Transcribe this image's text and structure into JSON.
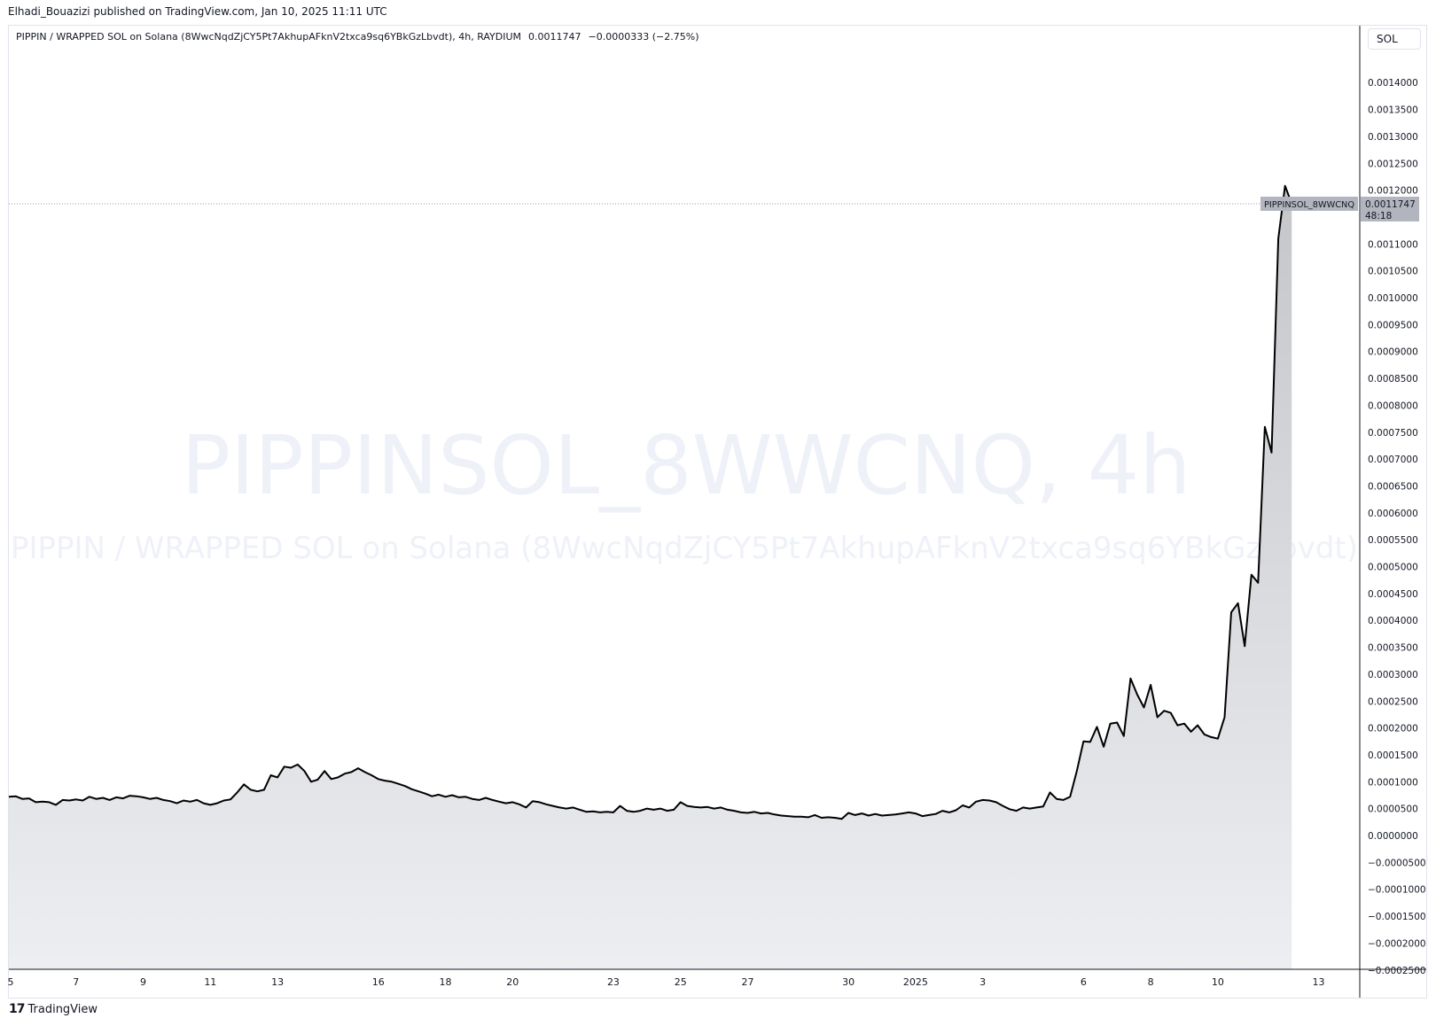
{
  "publish_info": "Elhadi_Bouazizi published on TradingView.com, Jan 10, 2025 11:11 UTC",
  "legend": {
    "symbol_desc": "PIPPIN / WRAPPED SOL on Solana (8WwcNqdZjCY5Pt7AkhupAFknV2txca9sq6YBkGzLbvdt), 4h, RAYDIUM",
    "last_price": "0.0011747",
    "change": "−0.0000333 (−2.75%)"
  },
  "currency_button": "SOL",
  "watermark": {
    "line1": "PIPPINSOL_8WWCNQ, 4h",
    "line2": "PIPPIN / WRAPPED SOL on Solana (8WwcNqdZjCY5Pt7AkhupAFknV2txca9sq6YBkGzLbvdt)"
  },
  "price_label": {
    "symbol": "PIPPINSOL_8WWCNQ",
    "price": "0.0011747",
    "countdown": "48:18"
  },
  "footer_brand": "TradingView",
  "colors": {
    "line": "#000000",
    "area_top": "#c4c6ca",
    "area_bottom": "#eceef1",
    "watermark": "#eef1f8",
    "price_tag": "#b2b5be",
    "grid_border": "#e0e3eb"
  },
  "chart_data": {
    "type": "area",
    "y_axis_position": "right",
    "ylim": [
      -0.00026,
      0.00145
    ],
    "y_ticks": [
      "0.0014000",
      "0.0013500",
      "0.0013000",
      "0.0012500",
      "0.0012000",
      "0.0011500",
      "0.0011000",
      "0.0010500",
      "0.0010000",
      "0.0009500",
      "0.0009000",
      "0.0008500",
      "0.0008000",
      "0.0007500",
      "0.0007000",
      "0.0006500",
      "0.0006000",
      "0.0005500",
      "0.0005000",
      "0.0004500",
      "0.0004000",
      "0.0003500",
      "0.0003000",
      "0.0002500",
      "0.0002000",
      "0.0001500",
      "0.0001000",
      "0.0000500",
      "0.0000000",
      "−0.0000500",
      "−0.0001000",
      "−0.0001500",
      "−0.0002000",
      "−0.0002500"
    ],
    "x_ticks": [
      {
        "label": "5",
        "day": 5
      },
      {
        "label": "7",
        "day": 7
      },
      {
        "label": "9",
        "day": 9
      },
      {
        "label": "11",
        "day": 11
      },
      {
        "label": "13",
        "day": 13
      },
      {
        "label": "16",
        "day": 16
      },
      {
        "label": "18",
        "day": 18
      },
      {
        "label": "20",
        "day": 20
      },
      {
        "label": "23",
        "day": 23
      },
      {
        "label": "25",
        "day": 25
      },
      {
        "label": "27",
        "day": 27
      },
      {
        "label": "30",
        "day": 30
      },
      {
        "label": "2025",
        "day": 32
      },
      {
        "label": "3",
        "day": 34
      },
      {
        "label": "6",
        "day": 37
      },
      {
        "label": "8",
        "day": 39
      },
      {
        "label": "10",
        "day": 41
      },
      {
        "label": "13",
        "day": 44
      }
    ],
    "x_unit": "days since Dec 0, 2024",
    "series": [
      {
        "points": [
          [
            5.0,
            7.2e-05
          ],
          [
            5.2,
            7.3e-05
          ],
          [
            5.4,
            6.8e-05
          ],
          [
            5.6,
            6.9e-05
          ],
          [
            5.8,
            6.2e-05
          ],
          [
            6.0,
            6.3e-05
          ],
          [
            6.2,
            6.2e-05
          ],
          [
            6.4,
            5.7e-05
          ],
          [
            6.6,
            6.6e-05
          ],
          [
            6.8,
            6.5e-05
          ],
          [
            7.0,
            6.7e-05
          ],
          [
            7.2,
            6.5e-05
          ],
          [
            7.4,
            7.2e-05
          ],
          [
            7.6,
            6.8e-05
          ],
          [
            7.8,
            7e-05
          ],
          [
            8.0,
            6.6e-05
          ],
          [
            8.2,
            7.1e-05
          ],
          [
            8.4,
            6.9e-05
          ],
          [
            8.6,
            7.4e-05
          ],
          [
            8.8,
            7.3e-05
          ],
          [
            9.0,
            7.1e-05
          ],
          [
            9.2,
            6.8e-05
          ],
          [
            9.4,
            7e-05
          ],
          [
            9.6,
            6.6e-05
          ],
          [
            9.8,
            6.4e-05
          ],
          [
            10.0,
            6e-05
          ],
          [
            10.2,
            6.5e-05
          ],
          [
            10.4,
            6.3e-05
          ],
          [
            10.6,
            6.6e-05
          ],
          [
            10.8,
            6e-05
          ],
          [
            11.0,
            5.7e-05
          ],
          [
            11.2,
            6e-05
          ],
          [
            11.4,
            6.5e-05
          ],
          [
            11.6,
            6.7e-05
          ],
          [
            11.8,
            8e-05
          ],
          [
            12.0,
            9.5e-05
          ],
          [
            12.2,
            8.5e-05
          ],
          [
            12.4,
            8.2e-05
          ],
          [
            12.6,
            8.5e-05
          ],
          [
            12.8,
            0.000112
          ],
          [
            13.0,
            0.000108
          ],
          [
            13.2,
            0.000128
          ],
          [
            13.4,
            0.000126
          ],
          [
            13.6,
            0.000132
          ],
          [
            13.8,
            0.00012
          ],
          [
            14.0,
            0.0001
          ],
          [
            14.2,
            0.000104
          ],
          [
            14.4,
            0.00012
          ],
          [
            14.6,
            0.000105
          ],
          [
            14.8,
            0.000108
          ],
          [
            15.0,
            0.000115
          ],
          [
            15.2,
            0.000118
          ],
          [
            15.4,
            0.000125
          ],
          [
            15.6,
            0.000118
          ],
          [
            15.8,
            0.000112
          ],
          [
            16.0,
            0.000105
          ],
          [
            16.2,
            0.000102
          ],
          [
            16.4,
            0.0001
          ],
          [
            16.6,
            9.6e-05
          ],
          [
            16.8,
            9.2e-05
          ],
          [
            17.0,
            8.6e-05
          ],
          [
            17.2,
            8.2e-05
          ],
          [
            17.4,
            7.8e-05
          ],
          [
            17.6,
            7.3e-05
          ],
          [
            17.8,
            7.6e-05
          ],
          [
            18.0,
            7.2e-05
          ],
          [
            18.2,
            7.5e-05
          ],
          [
            18.4,
            7.1e-05
          ],
          [
            18.6,
            7.2e-05
          ],
          [
            18.8,
            6.8e-05
          ],
          [
            19.0,
            6.6e-05
          ],
          [
            19.2,
            7e-05
          ],
          [
            19.4,
            6.6e-05
          ],
          [
            19.6,
            6.3e-05
          ],
          [
            19.8,
            6e-05
          ],
          [
            20.0,
            6.2e-05
          ],
          [
            20.2,
            5.8e-05
          ],
          [
            20.4,
            5.2e-05
          ],
          [
            20.6,
            6.4e-05
          ],
          [
            20.8,
            6.2e-05
          ],
          [
            21.0,
            5.8e-05
          ],
          [
            21.2,
            5.5e-05
          ],
          [
            21.4,
            5.2e-05
          ],
          [
            21.6,
            5e-05
          ],
          [
            21.8,
            5.2e-05
          ],
          [
            22.0,
            4.8e-05
          ],
          [
            22.2,
            4.4e-05
          ],
          [
            22.4,
            4.5e-05
          ],
          [
            22.6,
            4.3e-05
          ],
          [
            22.8,
            4.4e-05
          ],
          [
            23.0,
            4.3e-05
          ],
          [
            23.2,
            5.5e-05
          ],
          [
            23.4,
            4.6e-05
          ],
          [
            23.6,
            4.4e-05
          ],
          [
            23.8,
            4.6e-05
          ],
          [
            24.0,
            5e-05
          ],
          [
            24.2,
            4.8e-05
          ],
          [
            24.4,
            5e-05
          ],
          [
            24.6,
            4.6e-05
          ],
          [
            24.8,
            4.8e-05
          ],
          [
            25.0,
            6.2e-05
          ],
          [
            25.2,
            5.5e-05
          ],
          [
            25.4,
            5.3e-05
          ],
          [
            25.6,
            5.2e-05
          ],
          [
            25.8,
            5.3e-05
          ],
          [
            26.0,
            5e-05
          ],
          [
            26.2,
            5.2e-05
          ],
          [
            26.4,
            4.8e-05
          ],
          [
            26.6,
            4.6e-05
          ],
          [
            26.8,
            4.3e-05
          ],
          [
            27.0,
            4.2e-05
          ],
          [
            27.2,
            4.4e-05
          ],
          [
            27.4,
            4.1e-05
          ],
          [
            27.6,
            4.2e-05
          ],
          [
            27.8,
            3.9e-05
          ],
          [
            28.0,
            3.7e-05
          ],
          [
            28.2,
            3.6e-05
          ],
          [
            28.4,
            3.5e-05
          ],
          [
            28.6,
            3.5e-05
          ],
          [
            28.8,
            3.4e-05
          ],
          [
            29.0,
            3.8e-05
          ],
          [
            29.2,
            3.3e-05
          ],
          [
            29.4,
            3.4e-05
          ],
          [
            29.6,
            3.3e-05
          ],
          [
            29.8,
            3.1e-05
          ],
          [
            30.0,
            4.2e-05
          ],
          [
            30.2,
            3.8e-05
          ],
          [
            30.4,
            4.1e-05
          ],
          [
            30.6,
            3.7e-05
          ],
          [
            30.8,
            4e-05
          ],
          [
            31.0,
            3.7e-05
          ],
          [
            31.2,
            3.8e-05
          ],
          [
            31.4,
            3.9e-05
          ],
          [
            31.6,
            4.1e-05
          ],
          [
            31.8,
            4.3e-05
          ],
          [
            32.0,
            4.1e-05
          ],
          [
            32.2,
            3.6e-05
          ],
          [
            32.4,
            3.8e-05
          ],
          [
            32.6,
            4e-05
          ],
          [
            32.8,
            4.6e-05
          ],
          [
            33.0,
            4.3e-05
          ],
          [
            33.2,
            4.7e-05
          ],
          [
            33.4,
            5.6e-05
          ],
          [
            33.6,
            5.2e-05
          ],
          [
            33.8,
            6.3e-05
          ],
          [
            34.0,
            6.6e-05
          ],
          [
            34.2,
            6.5e-05
          ],
          [
            34.4,
            6.2e-05
          ],
          [
            34.6,
            5.5e-05
          ],
          [
            34.8,
            4.9e-05
          ],
          [
            35.0,
            4.6e-05
          ],
          [
            35.2,
            5.2e-05
          ],
          [
            35.4,
            5e-05
          ],
          [
            35.6,
            5.2e-05
          ],
          [
            35.8,
            5.4e-05
          ],
          [
            36.0,
            8e-05
          ],
          [
            36.2,
            6.8e-05
          ],
          [
            36.4,
            6.6e-05
          ],
          [
            36.6,
            7.2e-05
          ],
          [
            36.8,
            0.00012
          ],
          [
            37.0,
            0.000175
          ],
          [
            37.2,
            0.000174
          ],
          [
            37.4,
            0.000202
          ],
          [
            37.6,
            0.000165
          ],
          [
            37.8,
            0.000208
          ],
          [
            38.0,
            0.00021
          ],
          [
            38.2,
            0.000185
          ],
          [
            38.4,
            0.000292
          ],
          [
            38.6,
            0.000262
          ],
          [
            38.8,
            0.000238
          ],
          [
            39.0,
            0.00028
          ],
          [
            39.2,
            0.00022
          ],
          [
            39.4,
            0.000232
          ],
          [
            39.6,
            0.000228
          ],
          [
            39.8,
            0.000205
          ],
          [
            40.0,
            0.000208
          ],
          [
            40.2,
            0.000193
          ],
          [
            40.4,
            0.000205
          ],
          [
            40.6,
            0.000188
          ],
          [
            40.8,
            0.000183
          ],
          [
            41.0,
            0.00018
          ],
          [
            41.2,
            0.00022
          ],
          [
            41.4,
            0.000415
          ],
          [
            41.6,
            0.000432
          ],
          [
            41.8,
            0.000352
          ],
          [
            42.0,
            0.000485
          ],
          [
            42.2,
            0.00047
          ],
          [
            42.4,
            0.00076
          ],
          [
            42.6,
            0.000712
          ],
          [
            42.8,
            0.00111
          ],
          [
            43.0,
            0.001208
          ],
          [
            43.2,
            0.001175
          ]
        ]
      }
    ],
    "last_value": 0.0011747,
    "xlim": [
      5.0,
      45.2
    ]
  }
}
